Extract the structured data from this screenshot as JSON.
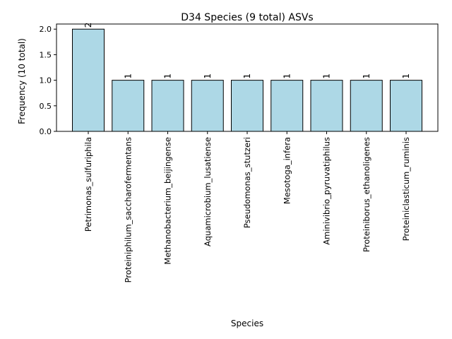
{
  "chart_data": {
    "type": "bar",
    "title": "D34 Species (9 total) ASVs",
    "xlabel": "Species",
    "ylabel": "Frequency (10 total)",
    "categories": [
      "Petrimonas_sulfuriphila",
      "Proteiniphilum_saccharofermentans",
      "Methanobacterium_beijingense",
      "Aquamicrobium_lusatiense",
      "Pseudomonas_stutzeri",
      "Mesotoga_infera",
      "Aminivibrio_pyruvatiphilus",
      "Proteiniborus_ethanoligenes",
      "Proteiniclasticum_ruminis"
    ],
    "values": [
      2,
      1,
      1,
      1,
      1,
      1,
      1,
      1,
      1
    ],
    "data_labels": [
      "2",
      "1",
      "1",
      "1",
      "1",
      "1",
      "1",
      "1",
      "1"
    ],
    "ylim": [
      0,
      2.1
    ],
    "yticks": [
      "0.0",
      "0.5",
      "1.0",
      "1.5",
      "2.0"
    ],
    "grid": false,
    "colors": {
      "bar_fill": "#add8e6",
      "bar_edge": "#000000"
    }
  }
}
